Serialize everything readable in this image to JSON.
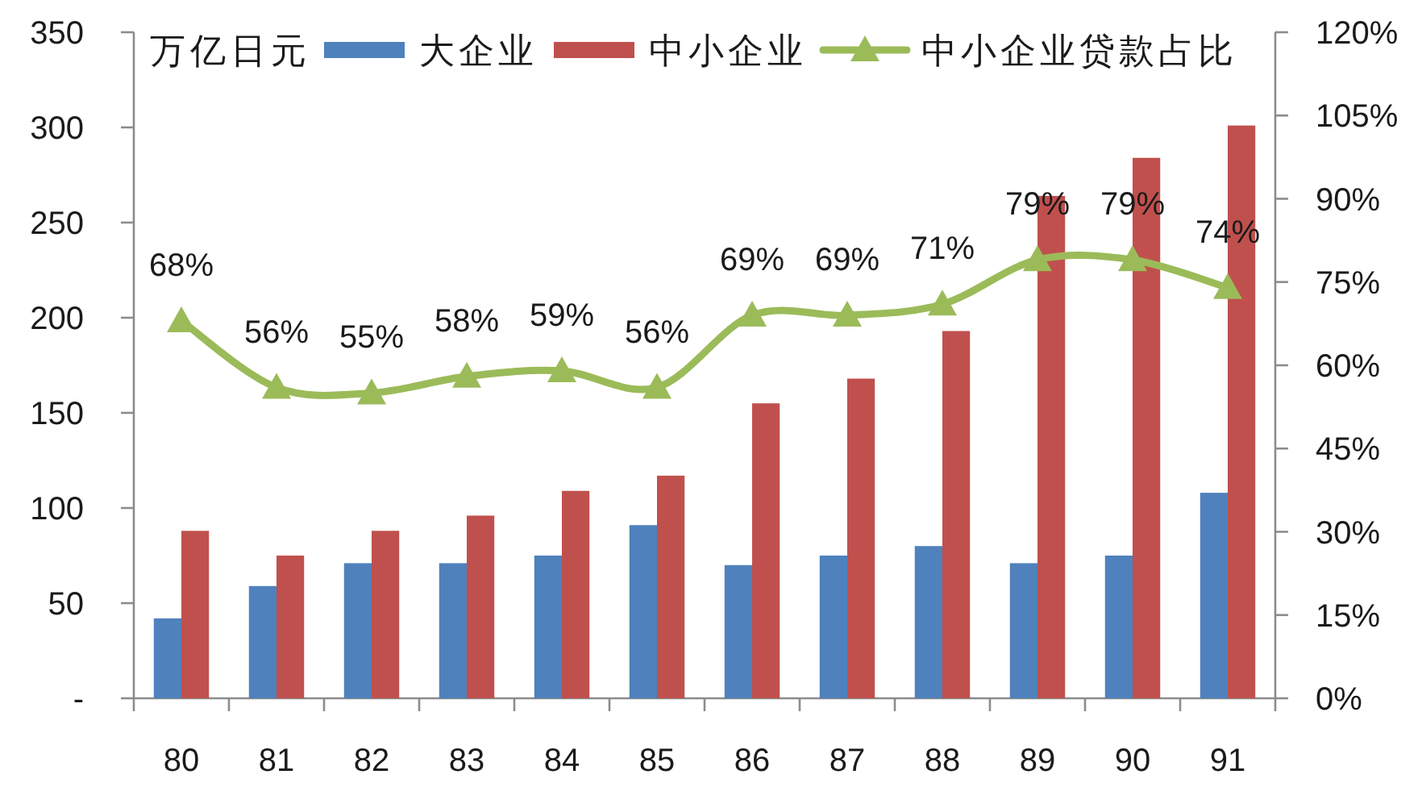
{
  "chart_data": {
    "type": "bar",
    "ylabel": "万亿日元",
    "legend": "top",
    "categories": [
      "80",
      "81",
      "82",
      "83",
      "84",
      "85",
      "86",
      "87",
      "88",
      "89",
      "90",
      "91"
    ],
    "series": [
      {
        "name": "大企业",
        "color": "#4f81bd",
        "values": [
          42,
          59,
          71,
          71,
          75,
          91,
          70,
          75,
          80,
          71,
          75,
          108
        ]
      },
      {
        "name": "中小企业",
        "color": "#c0504d",
        "values": [
          88,
          75,
          88,
          96,
          109,
          117,
          155,
          168,
          193,
          264,
          284,
          301
        ]
      },
      {
        "name": "中小企业贷款占比",
        "type": "line",
        "axis": "y2",
        "color": "#9bbb59",
        "marker": "triangle",
        "values": [
          68,
          56,
          55,
          58,
          59,
          56,
          69,
          69,
          71,
          79,
          79,
          74
        ],
        "value_labels": [
          "68%",
          "56%",
          "55%",
          "58%",
          "59%",
          "56%",
          "69%",
          "69%",
          "71%",
          "79%",
          "79%",
          "74%"
        ]
      }
    ],
    "ylim": [
      0,
      350
    ],
    "yticks": [
      {
        "value": 0,
        "label": "-"
      },
      50,
      100,
      150,
      200,
      250,
      300,
      350
    ],
    "y2lim": [
      0,
      120
    ],
    "y2ticks": [
      {
        "value": 0,
        "label": "0%"
      },
      {
        "value": 15,
        "label": "15%"
      },
      {
        "value": 30,
        "label": "30%"
      },
      {
        "value": 45,
        "label": "45%"
      },
      {
        "value": 60,
        "label": "60%"
      },
      {
        "value": 75,
        "label": "75%"
      },
      {
        "value": 90,
        "label": "90%"
      },
      {
        "value": 105,
        "label": "105%"
      },
      {
        "value": 120,
        "label": "120%"
      }
    ]
  }
}
